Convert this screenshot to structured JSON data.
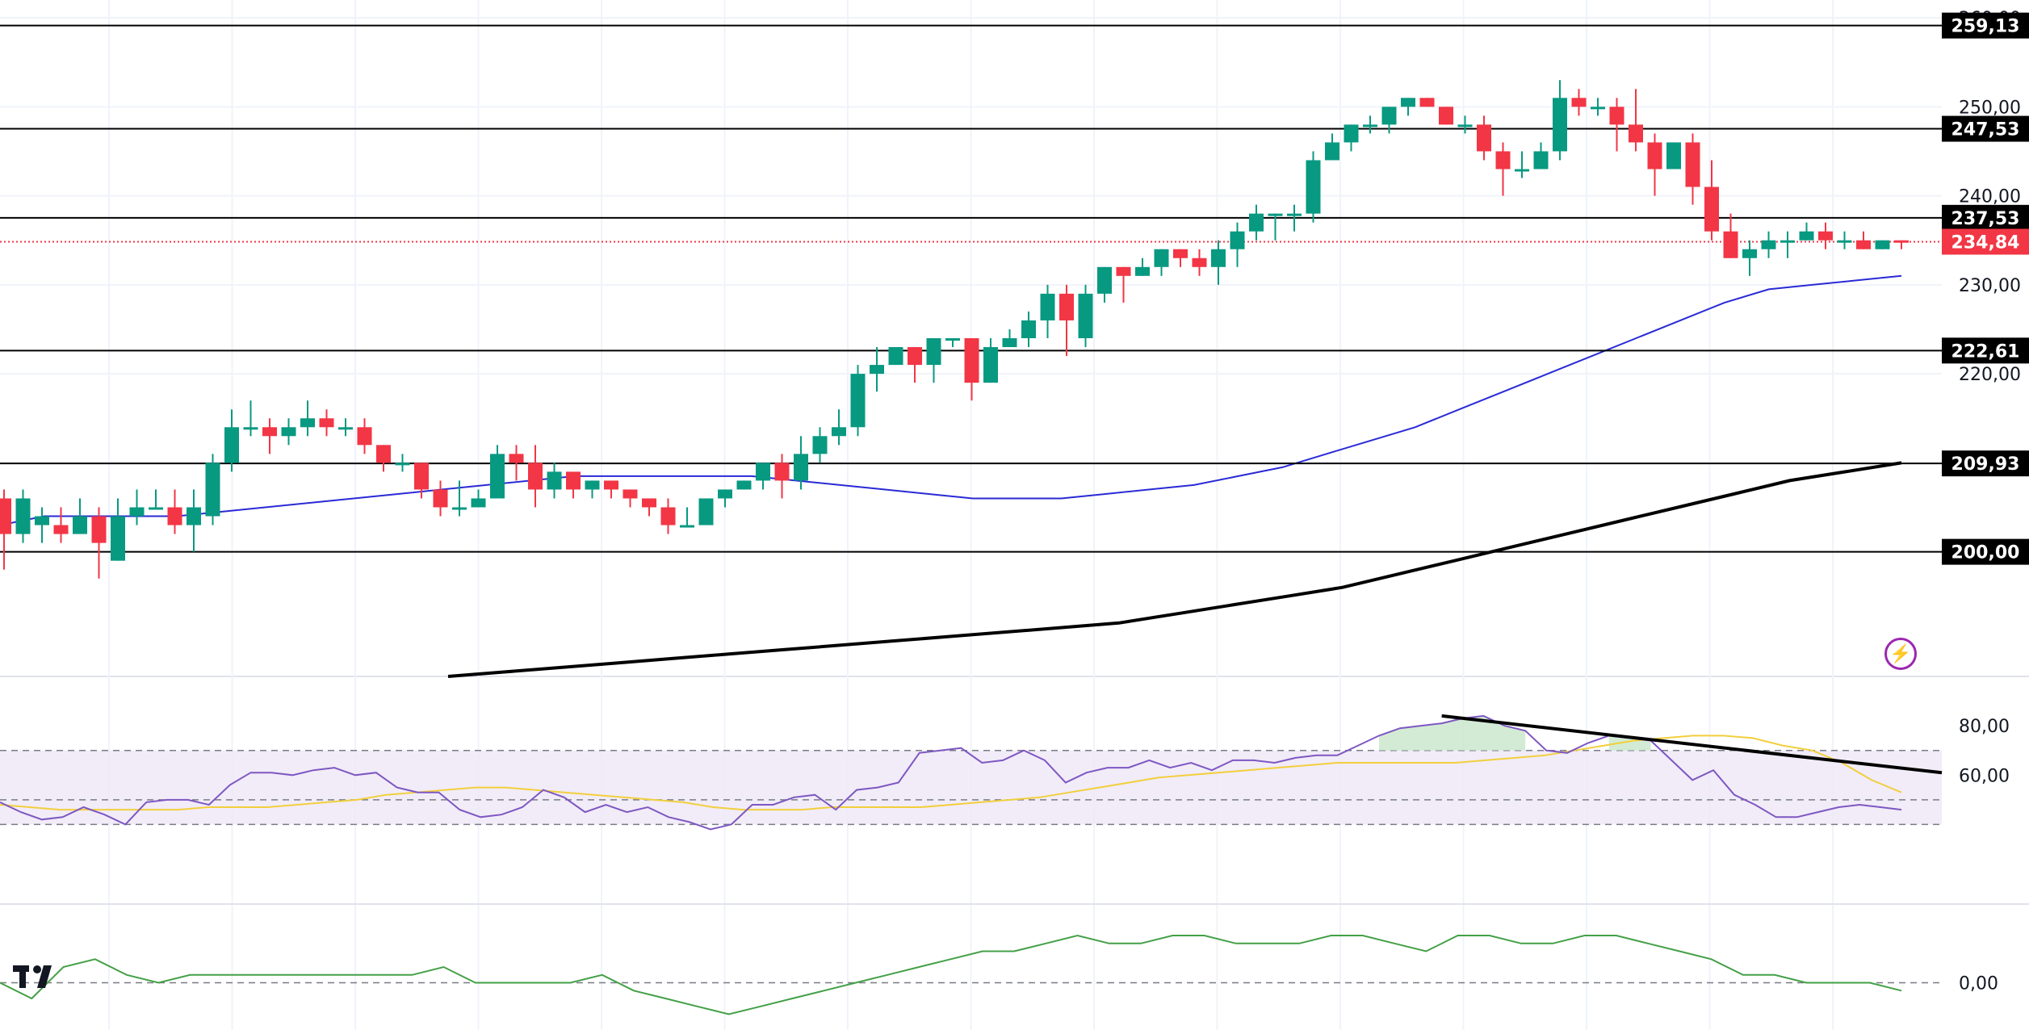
{
  "chart_data": [
    {
      "type": "candlestick",
      "title": "",
      "price_axis_ticks": [
        200,
        210,
        220,
        230,
        240,
        250,
        260
      ],
      "price_axis_tick_labels": [
        "200,00",
        "220,00",
        "230,00",
        "240,00",
        "250,00",
        "260,00"
      ],
      "y_range": [
        186,
        262
      ],
      "last_price": 234.84,
      "last_price_label": "234,84",
      "horizontal_levels": [
        {
          "value": 259.13,
          "label": "259,13"
        },
        {
          "value": 247.53,
          "label": "247,53"
        },
        {
          "value": 237.53,
          "label": "237,53"
        },
        {
          "value": 222.61,
          "label": "222,61"
        },
        {
          "value": 209.93,
          "label": "209,93"
        },
        {
          "value": 200.0,
          "label": "200,00"
        }
      ],
      "candles": [
        [
          206,
          202,
          207,
          198
        ],
        [
          202,
          206,
          207,
          201
        ],
        [
          203,
          204,
          205,
          201
        ],
        [
          203,
          202,
          205,
          201
        ],
        [
          202,
          204,
          206,
          202
        ],
        [
          204,
          201,
          205,
          197
        ],
        [
          199,
          204,
          206,
          199
        ],
        [
          204,
          205,
          207,
          203
        ],
        [
          205,
          205,
          207,
          205
        ],
        [
          205,
          203,
          207,
          202
        ],
        [
          203,
          205,
          207,
          200
        ],
        [
          204,
          210,
          211,
          203
        ],
        [
          210,
          214,
          216,
          209
        ],
        [
          214,
          214,
          217,
          213
        ],
        [
          214,
          213,
          215,
          211
        ],
        [
          213,
          214,
          215,
          212
        ],
        [
          214,
          215,
          217,
          213
        ],
        [
          215,
          214,
          216,
          213
        ],
        [
          214,
          214,
          215,
          213
        ],
        [
          214,
          212,
          215,
          211
        ],
        [
          212,
          210,
          212,
          209
        ],
        [
          210,
          210,
          211,
          209
        ],
        [
          210,
          207,
          210,
          206
        ],
        [
          207,
          205,
          208,
          204
        ],
        [
          205,
          205,
          208,
          204
        ],
        [
          205,
          206,
          207,
          205
        ],
        [
          206,
          211,
          212,
          206
        ],
        [
          211,
          210,
          212,
          208
        ],
        [
          210,
          207,
          212,
          205
        ],
        [
          207,
          209,
          210,
          206
        ],
        [
          209,
          207,
          209,
          206
        ],
        [
          207,
          208,
          208,
          206
        ],
        [
          208,
          207,
          208,
          206
        ],
        [
          207,
          206,
          207,
          205
        ],
        [
          206,
          205,
          206,
          204
        ],
        [
          205,
          203,
          206,
          202
        ],
        [
          203,
          203,
          205,
          203
        ],
        [
          203,
          206,
          206,
          203
        ],
        [
          206,
          207,
          207,
          205
        ],
        [
          207,
          208,
          208,
          207
        ],
        [
          208,
          210,
          210,
          207
        ],
        [
          210,
          208,
          211,
          206
        ],
        [
          208,
          211,
          213,
          207
        ],
        [
          211,
          213,
          214,
          210
        ],
        [
          213,
          214,
          216,
          212
        ],
        [
          214,
          220,
          221,
          213
        ],
        [
          220,
          221,
          223,
          218
        ],
        [
          221,
          223,
          223,
          221
        ],
        [
          223,
          221,
          223,
          219
        ],
        [
          221,
          224,
          224,
          219
        ],
        [
          224,
          224,
          224,
          223
        ],
        [
          224,
          219,
          224,
          217
        ],
        [
          219,
          223,
          224,
          219
        ],
        [
          223,
          224,
          225,
          223
        ],
        [
          224,
          226,
          227,
          223
        ],
        [
          226,
          229,
          230,
          224
        ],
        [
          229,
          226,
          230,
          222
        ],
        [
          224,
          229,
          230,
          223
        ],
        [
          229,
          232,
          232,
          228
        ],
        [
          232,
          231,
          232,
          228
        ],
        [
          231,
          232,
          233,
          231
        ],
        [
          232,
          234,
          234,
          231
        ],
        [
          234,
          233,
          234,
          232
        ],
        [
          233,
          232,
          234,
          231
        ],
        [
          232,
          234,
          235,
          230
        ],
        [
          234,
          236,
          237,
          232
        ],
        [
          236,
          238,
          239,
          235
        ],
        [
          238,
          238,
          238,
          235
        ],
        [
          238,
          238,
          239,
          236
        ],
        [
          238,
          244,
          245,
          237
        ],
        [
          244,
          246,
          247,
          245
        ],
        [
          246,
          248,
          248,
          245
        ],
        [
          248,
          248,
          249,
          247
        ],
        [
          248,
          250,
          250,
          247
        ],
        [
          250,
          251,
          251,
          249
        ],
        [
          251,
          250,
          251,
          250
        ],
        [
          250,
          248,
          250,
          248
        ],
        [
          248,
          248,
          249,
          247
        ],
        [
          248,
          245,
          249,
          244
        ],
        [
          245,
          243,
          246,
          240
        ],
        [
          243,
          243,
          245,
          242
        ],
        [
          243,
          245,
          246,
          243
        ],
        [
          245,
          251,
          253,
          244
        ],
        [
          251,
          250,
          252,
          249
        ],
        [
          250,
          250,
          251,
          249
        ],
        [
          250,
          248,
          251,
          245
        ],
        [
          248,
          246,
          252,
          245
        ],
        [
          246,
          243,
          247,
          240
        ],
        [
          243,
          246,
          246,
          243
        ],
        [
          246,
          241,
          247,
          239
        ],
        [
          241,
          236,
          244,
          235
        ],
        [
          236,
          233,
          238,
          233
        ],
        [
          233,
          234,
          235,
          231
        ],
        [
          234,
          235,
          236,
          233
        ],
        [
          235,
          235,
          236,
          233
        ],
        [
          235,
          236,
          237,
          235
        ],
        [
          236,
          235,
          237,
          234
        ],
        [
          235,
          235,
          236,
          234
        ],
        [
          235,
          234,
          236,
          234
        ],
        [
          234,
          235,
          235,
          234
        ],
        [
          235,
          234.84,
          235,
          234
        ]
      ],
      "moving_averages": [
        {
          "color": "#2a2ad6",
          "values": [
            203,
            204,
            204,
            204,
            204,
            204.5,
            205,
            205.5,
            206,
            206.5,
            207,
            207.5,
            208,
            208.5,
            208.5,
            208.5,
            208.5,
            208.5,
            208,
            207.5,
            207,
            206.5,
            206,
            206,
            206,
            206.5,
            207,
            207.5,
            208.5,
            209.5,
            211,
            212.5,
            214,
            216,
            218,
            220,
            222,
            224,
            226,
            228,
            229.5,
            230,
            230.5,
            231
          ]
        },
        {
          "color": "#000000",
          "values": [
            186,
            186.5,
            187,
            187.5,
            188,
            188.5,
            189,
            189.5,
            190,
            190.5,
            191,
            191.5,
            192,
            193,
            194,
            195,
            196,
            197.5,
            199,
            200.5,
            202,
            203.5,
            205,
            206.5,
            208,
            209,
            210
          ]
        }
      ]
    },
    {
      "type": "line",
      "title": "",
      "tick_labels": [
        "60,00",
        "80,00"
      ],
      "y_range": [
        30,
        100
      ],
      "band": [
        40,
        70
      ],
      "series": [
        {
          "color": "#7e57c2",
          "values": [
            49,
            45,
            42,
            43,
            47,
            44,
            40,
            49,
            50,
            50,
            48,
            56,
            61,
            61,
            60,
            62,
            63,
            60,
            61,
            55,
            53,
            53,
            46,
            43,
            44,
            47,
            54,
            51,
            45,
            48,
            45,
            47,
            43,
            41,
            38,
            40,
            48,
            48,
            51,
            52,
            46,
            54,
            55,
            57,
            69,
            70,
            71,
            65,
            66,
            70,
            66,
            57,
            61,
            63,
            63,
            66,
            63,
            65,
            62,
            66,
            66,
            65,
            67,
            68,
            68,
            72,
            76,
            79,
            80,
            81,
            83,
            84,
            80,
            78,
            70,
            69,
            73,
            76,
            75,
            74,
            66,
            58,
            62,
            52,
            48,
            43,
            43,
            45,
            47,
            48,
            47,
            46
          ]
        },
        {
          "color": "#f2cf3c",
          "values": [
            48,
            47,
            46,
            46,
            46,
            46,
            46,
            47,
            47,
            47,
            48,
            49,
            50,
            52,
            53,
            54,
            55,
            55,
            54,
            53,
            52,
            51,
            50,
            49,
            47,
            46,
            46,
            46,
            47,
            47,
            47,
            47,
            48,
            49,
            50,
            51,
            53,
            55,
            57,
            59,
            60,
            61,
            62,
            63,
            64,
            65,
            65,
            65,
            65,
            65,
            66,
            67,
            68,
            70,
            72,
            74,
            75,
            76,
            76,
            75,
            72,
            70,
            65,
            58,
            53
          ]
        }
      ]
    },
    {
      "type": "line",
      "title": "",
      "tick_labels": [
        "0,00"
      ],
      "y_range": [
        -6,
        10
      ],
      "series": [
        {
          "color": "#43a047",
          "values": [
            0,
            -2,
            2,
            3,
            1,
            0,
            1,
            1,
            1,
            1,
            1,
            1,
            1,
            1,
            2,
            0,
            0,
            0,
            0,
            1,
            -1,
            -2,
            -3,
            -4,
            -3,
            -2,
            -1,
            0,
            1,
            2,
            3,
            4,
            4,
            5,
            6,
            5,
            5,
            6,
            6,
            5,
            5,
            5,
            6,
            6,
            5,
            4,
            6,
            6,
            5,
            5,
            6,
            6,
            5,
            4,
            3,
            1,
            1,
            0,
            0,
            0,
            -1
          ]
        }
      ]
    }
  ]
}
